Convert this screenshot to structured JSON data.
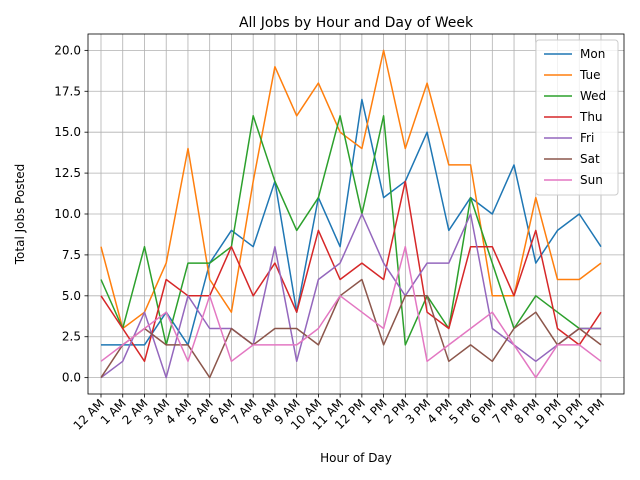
{
  "chart_data": {
    "type": "line",
    "title": "All Jobs by Hour and Day of Week",
    "xlabel": "Hour of Day",
    "ylabel": "Total Jobs Posted",
    "ylim": [
      -1,
      21
    ],
    "yticks": [
      0.0,
      2.5,
      5.0,
      7.5,
      10.0,
      12.5,
      15.0,
      17.5,
      20.0
    ],
    "ytick_labels": [
      "0.0",
      "2.5",
      "5.0",
      "7.5",
      "10.0",
      "12.5",
      "15.0",
      "17.5",
      "20.0"
    ],
    "grid": true,
    "legend_position": "top-right",
    "categories": [
      "12 AM",
      "1 AM",
      "2 AM",
      "3 AM",
      "4 AM",
      "5 AM",
      "6 AM",
      "7 AM",
      "8 AM",
      "9 AM",
      "10 AM",
      "11 AM",
      "12 PM",
      "1 PM",
      "2 PM",
      "3 PM",
      "4 PM",
      "5 PM",
      "6 PM",
      "7 PM",
      "8 PM",
      "9 PM",
      "10 PM",
      "11 PM"
    ],
    "series": [
      {
        "name": "Mon",
        "color": "#1f77b4",
        "values": [
          2,
          2,
          2,
          4,
          2,
          7,
          9,
          8,
          12,
          4,
          11,
          8,
          17,
          11,
          12,
          15,
          9,
          11,
          10,
          13,
          7,
          9,
          10,
          8
        ]
      },
      {
        "name": "Tue",
        "color": "#ff7f0e",
        "values": [
          8,
          3,
          4,
          7,
          14,
          6,
          4,
          12,
          19,
          16,
          18,
          15,
          14,
          20,
          14,
          18,
          13,
          13,
          5,
          5,
          11,
          6,
          6,
          7
        ]
      },
      {
        "name": "Wed",
        "color": "#2ca02c",
        "values": [
          6,
          3,
          8,
          2,
          7,
          7,
          8,
          16,
          12,
          9,
          11,
          16,
          10,
          16,
          2,
          5,
          3,
          11,
          7,
          3,
          5,
          4,
          3,
          3
        ]
      },
      {
        "name": "Thu",
        "color": "#d62728",
        "values": [
          5,
          3,
          1,
          6,
          5,
          5,
          8,
          5,
          7,
          4,
          9,
          6,
          7,
          6,
          12,
          4,
          3,
          8,
          8,
          5,
          9,
          3,
          2,
          4
        ]
      },
      {
        "name": "Fri",
        "color": "#9467bd",
        "values": [
          0,
          1,
          4,
          0,
          5,
          3,
          3,
          2,
          8,
          1,
          6,
          7,
          10,
          7,
          5,
          7,
          7,
          10,
          3,
          2,
          1,
          2,
          3,
          3
        ]
      },
      {
        "name": "Sat",
        "color": "#8c564b",
        "values": [
          0,
          2,
          3,
          2,
          2,
          0,
          3,
          2,
          3,
          3,
          2,
          5,
          6,
          2,
          5,
          5,
          1,
          2,
          1,
          3,
          4,
          2,
          3,
          2
        ]
      },
      {
        "name": "Sun",
        "color": "#e377c2",
        "values": [
          1,
          2,
          3,
          4,
          1,
          5,
          1,
          2,
          2,
          2,
          3,
          5,
          4,
          3,
          8,
          1,
          2,
          3,
          4,
          2,
          0,
          2,
          2,
          1
        ]
      }
    ]
  }
}
